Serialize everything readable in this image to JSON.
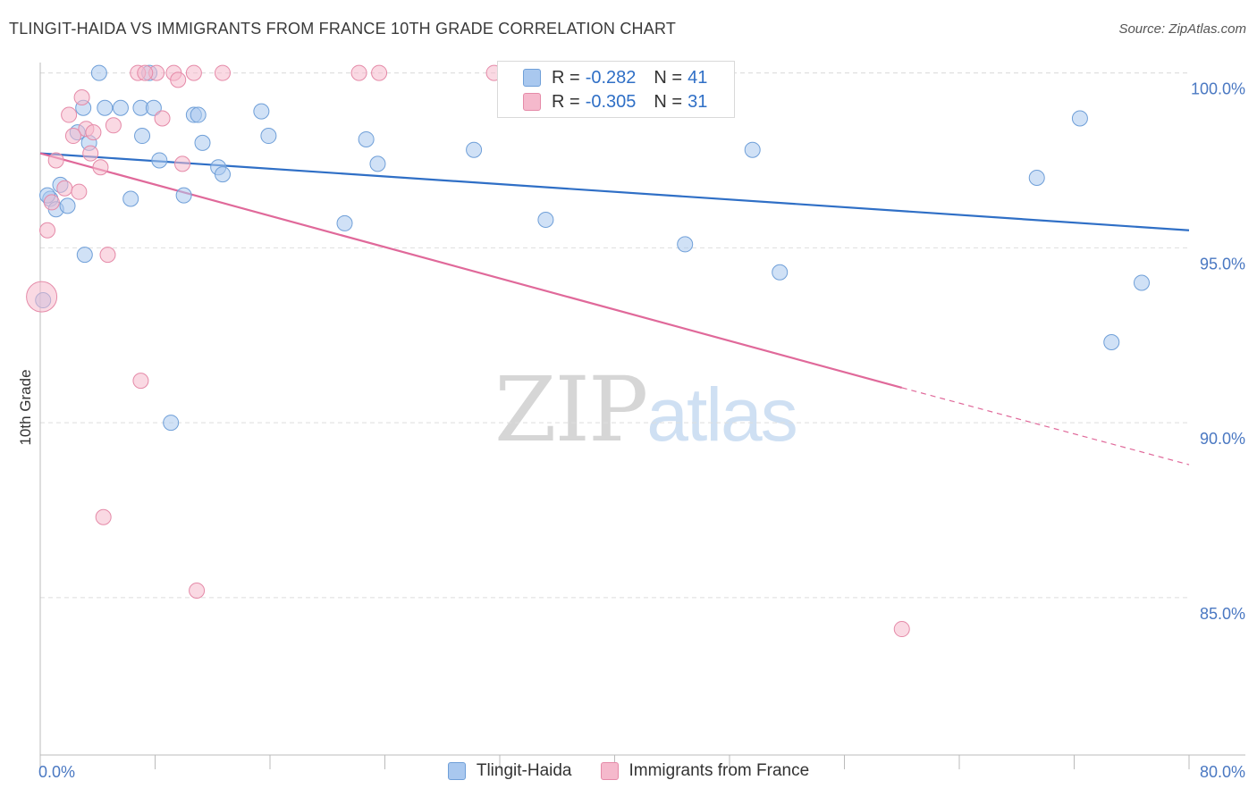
{
  "title": "TLINGIT-HAIDA VS IMMIGRANTS FROM FRANCE 10TH GRADE CORRELATION CHART",
  "source": "Source: ZipAtlas.com",
  "watermark": {
    "zip": "ZIP",
    "atlas": "atlas"
  },
  "colors": {
    "blue_fill": "#a9c8ef",
    "blue_stroke": "#6f9fd8",
    "blue_line": "#2f6fc6",
    "pink_fill": "#f5b9cc",
    "pink_stroke": "#e58aa8",
    "pink_line": "#e0699a",
    "tick_label": "#4a78c2",
    "grid": "#dedede"
  },
  "legend": {
    "rows": [
      {
        "r_label": "R =",
        "r_value": "-0.282",
        "n_label": "N =",
        "n_value": "41"
      },
      {
        "r_label": "R =",
        "r_value": "-0.305",
        "n_label": "N =",
        "n_value": "31"
      }
    ]
  },
  "chart_data": {
    "type": "scatter",
    "title": "TLINGIT-HAIDA VS IMMIGRANTS FROM FRANCE 10TH GRADE CORRELATION CHART",
    "xlabel": "",
    "ylabel": "10th Grade",
    "xlim": [
      0,
      80
    ],
    "ylim": [
      80.5,
      100.5
    ],
    "x_tick_labels": [
      "0.0%",
      "80.0%"
    ],
    "y_ticks": [
      85,
      90,
      95,
      100
    ],
    "y_tick_labels": [
      "85.0%",
      "90.0%",
      "95.0%",
      "100.0%"
    ],
    "grid": true,
    "legend_position": "bottom",
    "series": [
      {
        "name": "Tlingit-Haida",
        "trend": {
          "x": [
            0,
            80
          ],
          "y": [
            97.7,
            95.5
          ]
        },
        "points": [
          {
            "x": 4.1,
            "y": 100.0
          },
          {
            "x": 7.6,
            "y": 100.0
          },
          {
            "x": 36.3,
            "y": 100.0
          },
          {
            "x": 3.0,
            "y": 99.0
          },
          {
            "x": 4.5,
            "y": 99.0
          },
          {
            "x": 5.6,
            "y": 99.0
          },
          {
            "x": 7.0,
            "y": 99.0
          },
          {
            "x": 7.9,
            "y": 99.0
          },
          {
            "x": 15.4,
            "y": 98.9
          },
          {
            "x": 10.7,
            "y": 98.8
          },
          {
            "x": 11.0,
            "y": 98.8
          },
          {
            "x": 2.6,
            "y": 98.3
          },
          {
            "x": 7.1,
            "y": 98.2
          },
          {
            "x": 15.9,
            "y": 98.2
          },
          {
            "x": 22.7,
            "y": 98.1
          },
          {
            "x": 3.4,
            "y": 98.0
          },
          {
            "x": 11.3,
            "y": 98.0
          },
          {
            "x": 30.2,
            "y": 97.8
          },
          {
            "x": 49.6,
            "y": 97.8
          },
          {
            "x": 8.3,
            "y": 97.5
          },
          {
            "x": 23.5,
            "y": 97.4
          },
          {
            "x": 12.4,
            "y": 97.3
          },
          {
            "x": 12.7,
            "y": 97.1
          },
          {
            "x": 69.4,
            "y": 97.0
          },
          {
            "x": 1.4,
            "y": 96.8
          },
          {
            "x": 0.7,
            "y": 96.4
          },
          {
            "x": 6.3,
            "y": 96.4
          },
          {
            "x": 10.0,
            "y": 96.5
          },
          {
            "x": 1.1,
            "y": 96.1
          },
          {
            "x": 1.9,
            "y": 96.2
          },
          {
            "x": 21.2,
            "y": 95.7
          },
          {
            "x": 35.2,
            "y": 95.8
          },
          {
            "x": 44.9,
            "y": 95.1
          },
          {
            "x": 3.1,
            "y": 94.8
          },
          {
            "x": 51.5,
            "y": 94.3
          },
          {
            "x": 76.7,
            "y": 94.0
          },
          {
            "x": 0.2,
            "y": 93.5
          },
          {
            "x": 74.6,
            "y": 92.3
          },
          {
            "x": 9.1,
            "y": 90.0
          },
          {
            "x": 72.4,
            "y": 98.7
          },
          {
            "x": 0.5,
            "y": 96.5
          }
        ]
      },
      {
        "name": "Immigrants from France",
        "trend": {
          "x": [
            0,
            60
          ],
          "y": [
            97.7,
            91.0
          ]
        },
        "trend_dashed": {
          "x": [
            60,
            80
          ],
          "y": [
            91.0,
            88.8
          ]
        },
        "points": [
          {
            "x": 6.8,
            "y": 100.0
          },
          {
            "x": 8.1,
            "y": 100.0
          },
          {
            "x": 9.3,
            "y": 100.0
          },
          {
            "x": 9.6,
            "y": 99.8
          },
          {
            "x": 10.7,
            "y": 100.0
          },
          {
            "x": 12.7,
            "y": 100.0
          },
          {
            "x": 22.2,
            "y": 100.0
          },
          {
            "x": 23.6,
            "y": 100.0
          },
          {
            "x": 31.6,
            "y": 100.0
          },
          {
            "x": 7.3,
            "y": 100.0
          },
          {
            "x": 2.9,
            "y": 99.3
          },
          {
            "x": 2.0,
            "y": 98.8
          },
          {
            "x": 8.5,
            "y": 98.7
          },
          {
            "x": 3.2,
            "y": 98.4
          },
          {
            "x": 5.1,
            "y": 98.5
          },
          {
            "x": 3.7,
            "y": 98.3
          },
          {
            "x": 2.3,
            "y": 98.2
          },
          {
            "x": 3.5,
            "y": 97.7
          },
          {
            "x": 1.1,
            "y": 97.5
          },
          {
            "x": 4.2,
            "y": 97.3
          },
          {
            "x": 9.9,
            "y": 97.4
          },
          {
            "x": 1.7,
            "y": 96.7
          },
          {
            "x": 2.7,
            "y": 96.6
          },
          {
            "x": 0.5,
            "y": 95.5
          },
          {
            "x": 4.7,
            "y": 94.8
          },
          {
            "x": 0.1,
            "y": 93.6,
            "size": "large"
          },
          {
            "x": 7.0,
            "y": 91.2
          },
          {
            "x": 4.4,
            "y": 87.3
          },
          {
            "x": 10.9,
            "y": 85.2
          },
          {
            "x": 60.0,
            "y": 84.1
          },
          {
            "x": 0.8,
            "y": 96.3
          }
        ]
      }
    ]
  }
}
